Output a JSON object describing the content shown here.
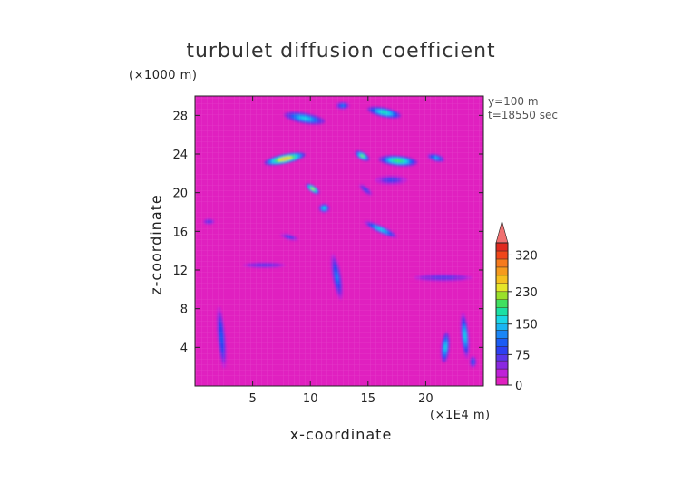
{
  "chart_data": {
    "type": "heatmap",
    "title": "turbulet diffusion coefficient",
    "xlabel": "x-coordinate",
    "ylabel": "z-coordinate",
    "x_unit": "(×1E4 m)",
    "y_unit": "(×1000 m)",
    "annotations": [
      "y=100 m",
      "t=18550 sec"
    ],
    "xlim": [
      0,
      25
    ],
    "ylim": [
      0,
      30
    ],
    "x_ticks": [
      5,
      10,
      15,
      20
    ],
    "y_ticks": [
      4,
      8,
      12,
      16,
      20,
      24,
      28
    ],
    "background_value": 10,
    "colorbar": {
      "range": [
        0,
        350
      ],
      "tick_values": [
        0,
        75,
        150,
        230,
        320
      ],
      "tick_labels": [
        "0",
        "75",
        "150",
        "230",
        "320"
      ],
      "levels": [
        0,
        20,
        40,
        60,
        75,
        95,
        115,
        135,
        150,
        170,
        190,
        210,
        230,
        250,
        270,
        290,
        310,
        330
      ],
      "colors": [
        "#e020c0",
        "#c020d8",
        "#8a28e0",
        "#5a36ea",
        "#2c40f2",
        "#1a5cf4",
        "#1a86f6",
        "#1ab4f2",
        "#1ad6e6",
        "#1ae0a4",
        "#40e060",
        "#9ae02a",
        "#e6e62a",
        "#f6c020",
        "#f69a1e",
        "#f67a1c",
        "#f0461a",
        "#e02a20"
      ]
    },
    "features": [
      {
        "x": 9.5,
        "z": 27.7,
        "rx": 1.8,
        "rz": 0.55,
        "angle": -10,
        "value": 160
      },
      {
        "x": 16.4,
        "z": 28.3,
        "rx": 1.5,
        "rz": 0.5,
        "angle": -12,
        "value": 175
      },
      {
        "x": 12.8,
        "z": 29.0,
        "rx": 0.6,
        "rz": 0.4,
        "angle": 0,
        "value": 120
      },
      {
        "x": 7.8,
        "z": 23.5,
        "rx": 1.8,
        "rz": 0.5,
        "angle": 12,
        "value": 260
      },
      {
        "x": 17.6,
        "z": 23.3,
        "rx": 1.7,
        "rz": 0.55,
        "angle": -5,
        "value": 200
      },
      {
        "x": 20.9,
        "z": 23.6,
        "rx": 0.8,
        "rz": 0.4,
        "angle": -15,
        "value": 140
      },
      {
        "x": 14.5,
        "z": 23.8,
        "rx": 0.7,
        "rz": 0.4,
        "angle": -30,
        "value": 210
      },
      {
        "x": 10.2,
        "z": 20.4,
        "rx": 0.7,
        "rz": 0.35,
        "angle": -35,
        "value": 230
      },
      {
        "x": 16.1,
        "z": 16.2,
        "rx": 1.6,
        "rz": 0.4,
        "angle": -25,
        "value": 150
      },
      {
        "x": 12.3,
        "z": 11.3,
        "rx": 0.4,
        "rz": 2.4,
        "angle": 10,
        "value": 120
      },
      {
        "x": 2.3,
        "z": 5.0,
        "rx": 0.35,
        "rz": 3.2,
        "angle": 5,
        "value": 100
      },
      {
        "x": 21.7,
        "z": 4.0,
        "rx": 0.35,
        "rz": 1.6,
        "angle": -5,
        "value": 160
      },
      {
        "x": 23.4,
        "z": 5.2,
        "rx": 0.35,
        "rz": 2.4,
        "angle": 5,
        "value": 150
      },
      {
        "x": 17.0,
        "z": 21.3,
        "rx": 1.4,
        "rz": 0.5,
        "angle": 0,
        "value": 80
      },
      {
        "x": 21.5,
        "z": 11.2,
        "rx": 3.0,
        "rz": 0.45,
        "angle": 0,
        "value": 70
      },
      {
        "x": 6.0,
        "z": 12.5,
        "rx": 2.2,
        "rz": 0.35,
        "angle": 0,
        "value": 70
      },
      {
        "x": 1.2,
        "z": 17.0,
        "rx": 0.6,
        "rz": 0.35,
        "angle": 0,
        "value": 70
      },
      {
        "x": 8.2,
        "z": 15.4,
        "rx": 0.8,
        "rz": 0.3,
        "angle": -15,
        "value": 80
      },
      {
        "x": 11.2,
        "z": 18.4,
        "rx": 0.5,
        "rz": 0.5,
        "angle": 0,
        "value": 150
      },
      {
        "x": 14.8,
        "z": 20.3,
        "rx": 0.7,
        "rz": 0.3,
        "angle": -40,
        "value": 90
      },
      {
        "x": 24.1,
        "z": 2.5,
        "rx": 0.3,
        "rz": 0.6,
        "angle": 0,
        "value": 100
      }
    ]
  }
}
